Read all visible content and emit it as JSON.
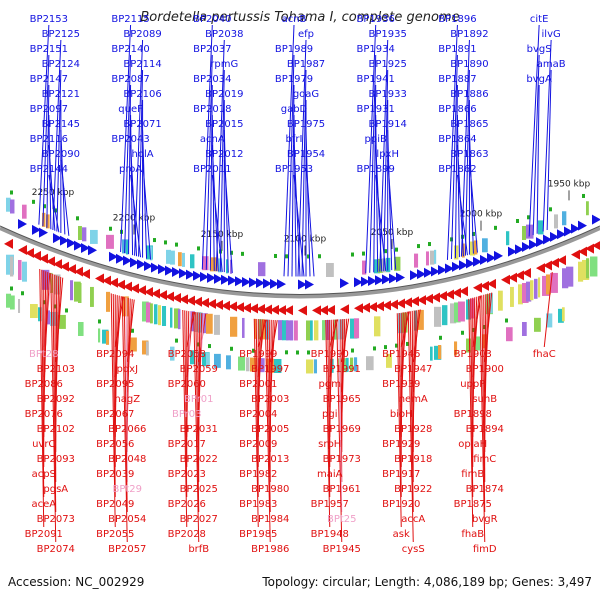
{
  "title": "Bordetella pertussis Tohama I, complete genome",
  "footer": {
    "accession": "Accession: NC_002929",
    "summary": "Topology: circular; Length: 4,086,189 bp; Genes: 3,497"
  },
  "colors": {
    "forward_strand": "#1212e0",
    "reverse_strand": "#e01010",
    "rna_label": "#f0a0c8",
    "backbone": "#888888",
    "feature_green": "#22aa22"
  },
  "chart_data": {
    "type": "genome-map",
    "scale_ticks": [
      "2250 kbp",
      "2200 kbp",
      "2150 kbp",
      "2100 kbp",
      "2050 kbp",
      "2000 kbp",
      "1950 kbp"
    ],
    "forward_genes": [
      "BP2153",
      "BP2125",
      "BP2151",
      "BP2124",
      "BP2147",
      "BP2121",
      "BP2097",
      "BP2145",
      "BP2116",
      "BP2090",
      "BP2144",
      "BP2115",
      "BP2089",
      "BP2140",
      "BP2114",
      "BP2087",
      "BP2106",
      "queF",
      "BP2071",
      "BP2043",
      "holA",
      "proA",
      "BP2040",
      "BP2038",
      "BP2037",
      "rpmG",
      "BP2034",
      "BP2019",
      "BP2018",
      "BP2015",
      "acnA",
      "BP2012",
      "BP2011",
      "acnB",
      "efp",
      "BP1989",
      "BP1987",
      "BP1979",
      "goaG",
      "gabD",
      "BP1975",
      "bfrI",
      "BP1954",
      "BP1953",
      "BP1936",
      "BP1935",
      "BP1934",
      "BP1925",
      "BP1941",
      "BP1933",
      "BP1931",
      "BP1914",
      "ppiB",
      "lpxH",
      "BP1899",
      "BP1896",
      "BP1892",
      "BP1891",
      "BP1890",
      "BP1887",
      "BP1886",
      "BP1866",
      "BP1865",
      "BP1864",
      "BP1863",
      "BP1862",
      "citE",
      "ilvG",
      "bvgS",
      "amaB",
      "bvgA"
    ],
    "reverse_genes": [
      "BPt28",
      "BP2103",
      "BP2086",
      "BP2092",
      "BP2076",
      "BP2102",
      "uvrC",
      "BP2093",
      "acpS",
      "pgsA",
      "aceA",
      "BP2073",
      "BP2091",
      "BP2074",
      "BP2094",
      "pdxJ",
      "BP2095",
      "nagZ",
      "BP2067",
      "BP2066",
      "BP2056",
      "BP2048",
      "BP2039",
      "BPt29",
      "BP2049",
      "BP2054",
      "BP2055",
      "BP2057",
      "BP2058",
      "BP2059",
      "BP2060",
      "BPr01",
      "BPr03",
      "BP2031",
      "BP2017",
      "BP2022",
      "BP2023",
      "BP2025",
      "BP2026",
      "BP2027",
      "BP2028",
      "brfB",
      "BP1999",
      "BP1997",
      "BP2001",
      "BP2003",
      "BP2004",
      "BP2005",
      "BP2009",
      "BP2013",
      "BP1982",
      "BP1980",
      "BP1983",
      "BP1984",
      "BP1985",
      "BP1986",
      "BP1990",
      "BP1991",
      "pgm",
      "BP1965",
      "pgi",
      "BP1969",
      "srpH",
      "BP1973",
      "maiA",
      "BP1961",
      "BP1957",
      "BPt25",
      "BP1948",
      "BP1945",
      "BP1946",
      "BP1947",
      "BP1939",
      "nemA",
      "bioH",
      "BP1928",
      "BP1929",
      "BP1918",
      "BP1917",
      "BP1922",
      "BP1920",
      "accA",
      "ask",
      "cysS",
      "BP1903",
      "BP1900",
      "uppP",
      "suhB",
      "BP1898",
      "BP1894",
      "oplaH",
      "fimC",
      "fimB",
      "BP1874",
      "BP1875",
      "bvgR",
      "fhaB",
      "fimD",
      "fhaC"
    ]
  }
}
